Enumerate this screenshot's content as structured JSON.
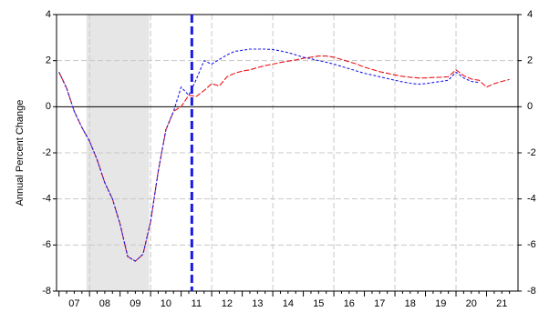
{
  "chart_data": {
    "type": "line",
    "y_label": "Annual Percent Change",
    "x": [
      2007,
      2007.25,
      2007.5,
      2007.75,
      2008,
      2008.25,
      2008.5,
      2008.75,
      2009,
      2009.25,
      2009.5,
      2009.75,
      2010,
      2010.25,
      2010.5,
      2010.75,
      2011,
      2011.25,
      2011.5,
      2011.75,
      2012,
      2012.25,
      2012.5,
      2012.75,
      2013,
      2013.25,
      2013.5,
      2013.75,
      2014,
      2014.25,
      2014.5,
      2014.75,
      2015,
      2015.25,
      2015.5,
      2015.75,
      2016,
      2016.25,
      2016.5,
      2016.75,
      2017,
      2017.25,
      2017.5,
      2017.75,
      2018,
      2018.25,
      2018.5,
      2018.75,
      2019,
      2019.25,
      2019.5,
      2019.75,
      2020,
      2020.25,
      2020.5,
      2020.75,
      2021,
      2021.25,
      2021.5,
      2021.75
    ],
    "series": [
      {
        "color": "#e8141a",
        "dash": "6 2",
        "values": [
          1.5,
          0.8,
          -0.2,
          -0.9,
          -1.5,
          -2.3,
          -3.3,
          -4.0,
          -5.1,
          -6.5,
          -6.7,
          -6.4,
          -5.0,
          -2.8,
          -1.0,
          -0.2,
          0.0,
          0.5,
          0.45,
          0.7,
          1.0,
          0.9,
          1.3,
          1.45,
          1.55,
          1.6,
          1.7,
          1.78,
          1.85,
          1.92,
          1.98,
          2.03,
          2.1,
          2.15,
          2.2,
          2.2,
          2.15,
          2.05,
          1.95,
          1.85,
          1.72,
          1.62,
          1.52,
          1.45,
          1.38,
          1.32,
          1.28,
          1.25,
          1.25,
          1.27,
          1.28,
          1.3,
          1.6,
          1.35,
          1.2,
          1.15,
          0.85,
          1.0,
          1.1,
          1.18
        ]
      },
      {
        "color": "#1a1ae6",
        "dash": "3 2",
        "values": [
          1.5,
          0.8,
          -0.2,
          -0.9,
          -1.5,
          -2.3,
          -3.3,
          -4.0,
          -5.1,
          -6.5,
          -6.7,
          -6.4,
          -5.0,
          -2.8,
          -1.0,
          -0.2,
          0.85,
          0.5,
          1.2,
          2.0,
          1.85,
          2.05,
          2.25,
          2.4,
          2.45,
          2.5,
          2.5,
          2.5,
          2.48,
          2.42,
          2.35,
          2.25,
          2.15,
          2.08,
          2.0,
          1.93,
          1.85,
          1.75,
          1.65,
          1.55,
          1.45,
          1.38,
          1.3,
          1.22,
          1.15,
          1.08,
          1.02,
          0.98,
          1.0,
          1.05,
          1.1,
          1.15,
          1.5,
          1.25,
          1.1,
          1.05,
          null,
          null,
          null,
          null
        ]
      }
    ],
    "xlim": [
      2006.92,
      2022.03
    ],
    "xticks": [
      {
        "value": 2007,
        "label": "07"
      },
      {
        "value": 2008,
        "label": "08"
      },
      {
        "value": 2009,
        "label": "09"
      },
      {
        "value": 2010,
        "label": "10"
      },
      {
        "value": 2011,
        "label": "11"
      },
      {
        "value": 2012,
        "label": "12"
      },
      {
        "value": 2013,
        "label": "13"
      },
      {
        "value": 2014,
        "label": "14"
      },
      {
        "value": 2015,
        "label": "15"
      },
      {
        "value": 2016,
        "label": "16"
      },
      {
        "value": 2017,
        "label": "17"
      },
      {
        "value": 2018,
        "label": "18"
      },
      {
        "value": 2019,
        "label": "19"
      },
      {
        "value": 2020,
        "label": "20"
      },
      {
        "value": 2021,
        "label": "21"
      }
    ],
    "ylim": [
      -8,
      4
    ],
    "yticks": [
      -8,
      -6,
      -4,
      -2,
      0,
      2,
      4
    ],
    "shaded": [
      2007.9,
      2009.95
    ],
    "marker_x": 2011.35,
    "grid": true
  }
}
